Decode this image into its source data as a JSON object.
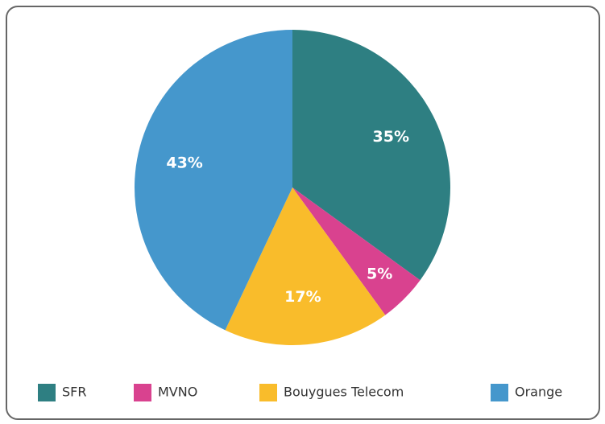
{
  "chart_data": {
    "type": "pie",
    "categories": [
      "SFR",
      "MVNO",
      "Bouygues Telecom",
      "Orange"
    ],
    "values": [
      35,
      5,
      17,
      43
    ],
    "value_labels": [
      "35%",
      "5%",
      "17%",
      "43%"
    ],
    "colors": [
      "#2e7f82",
      "#d9428f",
      "#f9bc2b",
      "#4597cc"
    ],
    "legend": "bottom"
  }
}
